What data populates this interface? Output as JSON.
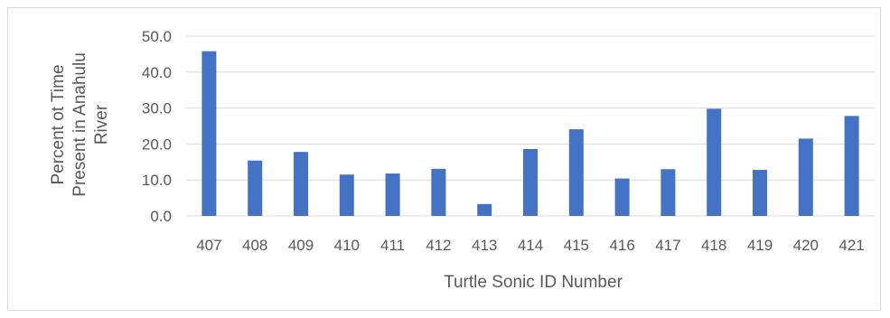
{
  "chart_data": {
    "type": "bar",
    "title": "",
    "xlabel": "Turtle Sonic ID Number",
    "ylabel_lines": [
      "Percent ot Time",
      "Present in Anahulu",
      "River"
    ],
    "categories": [
      "407",
      "408",
      "409",
      "410",
      "411",
      "412",
      "413",
      "414",
      "415",
      "416",
      "417",
      "418",
      "419",
      "420",
      "421"
    ],
    "values": [
      45.8,
      15.4,
      17.8,
      11.5,
      11.8,
      13.1,
      3.3,
      18.6,
      24.1,
      10.4,
      13.0,
      29.8,
      12.8,
      21.5,
      27.8
    ],
    "ylim": [
      0,
      50
    ],
    "yticks": [
      0,
      10,
      20,
      30,
      40,
      50
    ],
    "ytick_labels": [
      "0.0",
      "10.0",
      "20.0",
      "30.0",
      "40.0",
      "50.0"
    ],
    "grid": true,
    "legend": "none",
    "colors": {
      "bar": "#4472C4",
      "grid": "#d9d9d9",
      "text": "#595959"
    }
  }
}
